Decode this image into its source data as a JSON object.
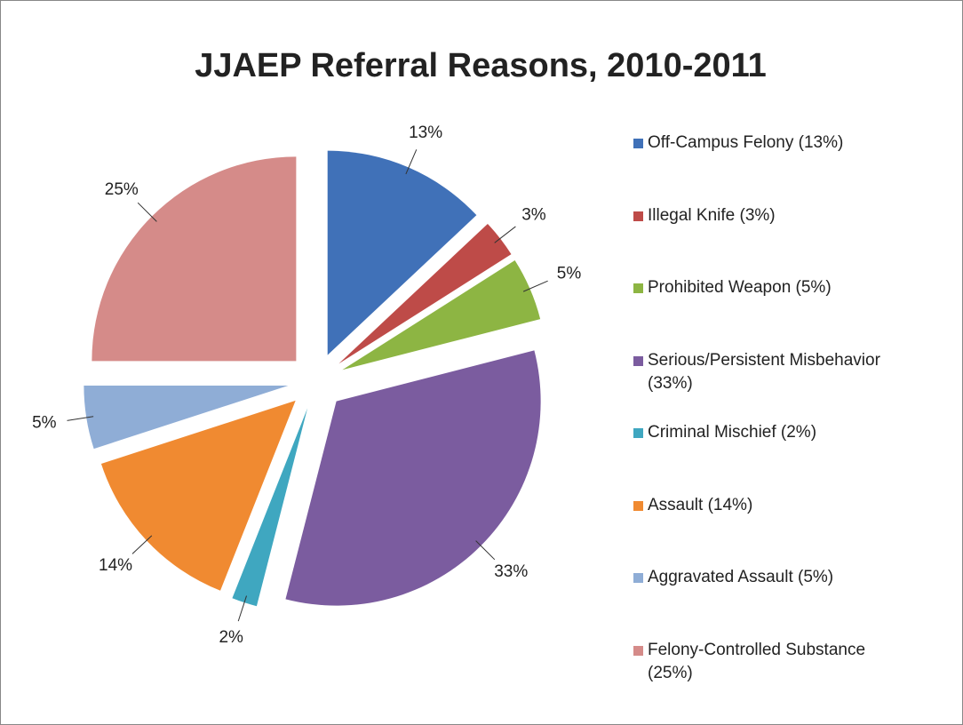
{
  "chart_data": {
    "type": "pie",
    "title": "JJAEP Referral Reasons, 2010-2011",
    "categories": [
      "Off-Campus Felony (13%)",
      "Illegal Knife (3%)",
      "Prohibited Weapon (5%)",
      "Serious/Persistent Misbehavior (33%)",
      "Criminal Mischief (2%)",
      "Assault (14%)",
      "Aggravated Assault (5%)",
      "Felony-Controlled Substance (25%)"
    ],
    "values": [
      13,
      3,
      5,
      33,
      2,
      14,
      5,
      25
    ],
    "value_labels": [
      "13%",
      "3%",
      "5%",
      "33%",
      "2%",
      "14%",
      "5%",
      "25%"
    ],
    "colors": [
      "#4071b8",
      "#be4b48",
      "#8db543",
      "#7b5c9f",
      "#3fa7c0",
      "#f08a31",
      "#8fadd6",
      "#d58b89"
    ],
    "legend": "right"
  }
}
